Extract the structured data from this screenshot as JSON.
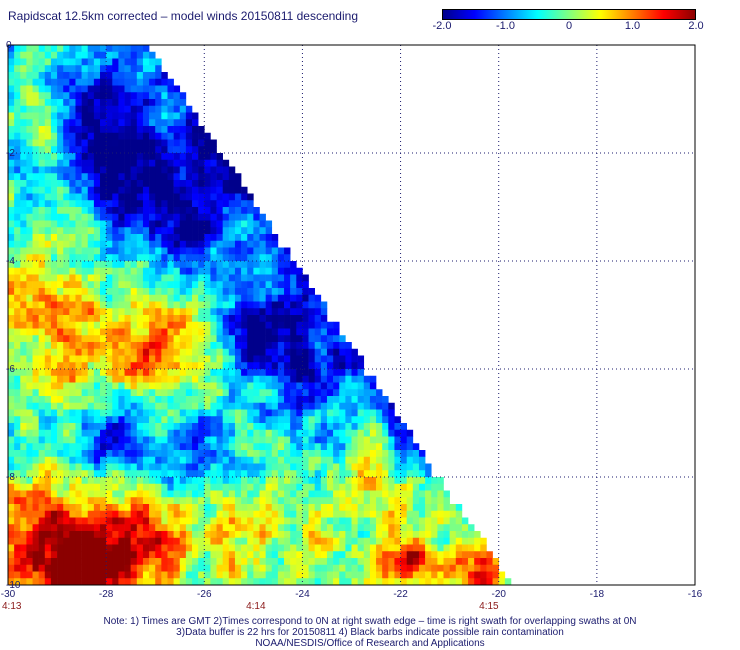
{
  "title": "Rapidscat 12.5km corrected – model winds 20150811 descending",
  "colorbar": {
    "vmin": -2.0,
    "vmax": 2.0,
    "colors": [
      "#00008b",
      "#0000ff",
      "#0080ff",
      "#00ffff",
      "#80ff80",
      "#ffff00",
      "#ff8000",
      "#ff0000",
      "#8b0000"
    ],
    "tick_labels": [
      {
        "value": -2.0,
        "label": "-2.0"
      },
      {
        "value": -1.0,
        "label": "-1.0"
      },
      {
        "value": 0.0,
        "label": "0"
      },
      {
        "value": 1.0,
        "label": "1.0"
      },
      {
        "value": 2.0,
        "label": "2.0"
      }
    ]
  },
  "map": {
    "lon_range": [
      -30,
      -16
    ],
    "lat_range": [
      -10,
      0
    ],
    "lon_ticks": [
      {
        "value": -30,
        "label": "-30"
      },
      {
        "value": -28,
        "label": "-28"
      },
      {
        "value": -26,
        "label": "-26"
      },
      {
        "value": -24,
        "label": "-24"
      },
      {
        "value": -22,
        "label": "-22"
      },
      {
        "value": -20,
        "label": "-20"
      },
      {
        "value": -18,
        "label": "-18"
      },
      {
        "value": -16,
        "label": "-16"
      }
    ],
    "lat_ticks": [
      {
        "value": 0,
        "label": "0"
      },
      {
        "value": -2,
        "label": "-2"
      },
      {
        "value": -4,
        "label": "-4"
      },
      {
        "value": -6,
        "label": "-6"
      },
      {
        "value": -8,
        "label": "-8"
      },
      {
        "value": -10,
        "label": "-10"
      }
    ],
    "time_labels": [
      {
        "lon": -30,
        "label": "4:13"
      },
      {
        "lon": -24.95,
        "label": "4:14"
      },
      {
        "lon": -20.2,
        "label": "4:15"
      }
    ],
    "swath_edge": {
      "lat_top": 0,
      "lon_at_top": -27.2,
      "lat_bottom": -10,
      "lon_at_bottom": -19.8
    },
    "grid": "dotted",
    "anomalies": [
      {
        "lon": -27.6,
        "lat": -2.1,
        "amp": -1.8,
        "r": 1.1
      },
      {
        "lon": -28.4,
        "lat": -1.0,
        "amp": -0.9,
        "r": 1.0
      },
      {
        "lon": -26.2,
        "lat": -3.2,
        "amp": -1.5,
        "r": 1.1
      },
      {
        "lon": -25.2,
        "lat": -1.8,
        "amp": -1.0,
        "r": 0.7
      },
      {
        "lon": -29.3,
        "lat": -1.2,
        "amp": 0.4,
        "r": 0.7
      },
      {
        "lon": -28.5,
        "lat": -5.6,
        "amp": 1.1,
        "r": 1.1
      },
      {
        "lon": -26.8,
        "lat": -5.5,
        "amp": 1.3,
        "r": 0.9
      },
      {
        "lon": -29.5,
        "lat": -4.5,
        "amp": 1.0,
        "r": 0.8
      },
      {
        "lon": -24.8,
        "lat": -5.2,
        "amp": -1.6,
        "r": 0.9
      },
      {
        "lon": -23.8,
        "lat": -6.2,
        "amp": -1.2,
        "r": 0.9
      },
      {
        "lon": -27.8,
        "lat": -7.3,
        "amp": -1.4,
        "r": 0.7
      },
      {
        "lon": -26.0,
        "lat": -7.5,
        "amp": -0.8,
        "r": 0.8
      },
      {
        "lon": -29.2,
        "lat": -9.2,
        "amp": 2.0,
        "r": 1.2
      },
      {
        "lon": -27.2,
        "lat": -9.2,
        "amp": 1.7,
        "r": 0.9
      },
      {
        "lon": -28.2,
        "lat": -10.0,
        "amp": 1.9,
        "r": 0.8
      },
      {
        "lon": -25.2,
        "lat": -9.2,
        "amp": 0.8,
        "r": 0.9
      },
      {
        "lon": -23.5,
        "lat": -9.0,
        "amp": 0.5,
        "r": 0.9
      },
      {
        "lon": -21.8,
        "lat": -9.6,
        "amp": 1.6,
        "r": 0.7
      },
      {
        "lon": -20.4,
        "lat": -9.8,
        "amp": 2.0,
        "r": 0.5
      },
      {
        "lon": -22.5,
        "lat": -8.2,
        "amp": 0.7,
        "r": 0.7
      }
    ]
  },
  "notes": [
    "Note: 1) Times are GMT 2)Times correspond to 0N at right swath edge – time is right swath for overlapping swaths at 0N",
    "3)Data buffer is 22 hrs for 20150811 4) Black barbs indicate possible rain contamination",
    "NOAA/NESDIS/Office of Research and Applications"
  ]
}
